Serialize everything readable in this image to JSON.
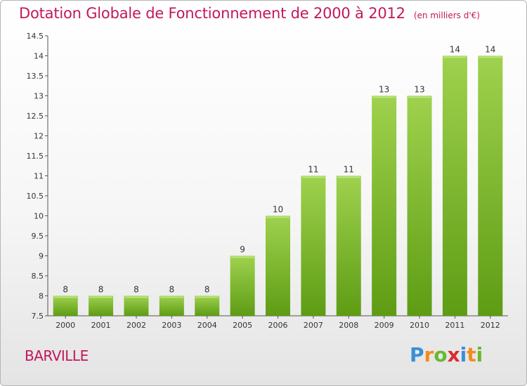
{
  "header": {
    "title": "Dotation Globale de Fonctionnement de 2000 à 2012",
    "subtitle": "(en milliers d'€)"
  },
  "commune": "BARVILLE",
  "logo": {
    "letters": [
      "P",
      "r",
      "o",
      "x",
      "i",
      "t",
      "i"
    ],
    "colors": [
      "#3b8fd6",
      "#f28c1e",
      "#6ab82f",
      "#d62f2f",
      "#3b8fd6",
      "#f28c1e",
      "#6ab82f"
    ]
  },
  "colors": {
    "bar_top": "#9fd24e",
    "bar_bottom": "#5e9c14",
    "title": "#c2185b"
  },
  "chart_data": {
    "type": "bar",
    "categories": [
      "2000",
      "2001",
      "2002",
      "2003",
      "2004",
      "2005",
      "2006",
      "2007",
      "2008",
      "2009",
      "2010",
      "2011",
      "2012"
    ],
    "values": [
      8,
      8,
      8,
      8,
      8,
      9,
      10,
      11,
      11,
      13,
      13,
      14,
      14
    ],
    "data_labels": [
      "8",
      "8",
      "8",
      "8",
      "8",
      "9",
      "10",
      "11",
      "11",
      "13",
      "13",
      "14",
      "14"
    ],
    "ylim": [
      7.5,
      14.5
    ],
    "yticks": [
      7.5,
      8,
      8.5,
      9,
      9.5,
      10,
      10.5,
      11,
      11.5,
      12,
      12.5,
      13,
      13.5,
      14,
      14.5
    ],
    "ytick_labels": [
      "7.5",
      "8",
      "8.5",
      "9",
      "9.5",
      "10",
      "10.5",
      "11",
      "11.5",
      "12",
      "12.5",
      "13",
      "13.5",
      "14",
      "14.5"
    ],
    "grid": false,
    "legend": "none"
  }
}
